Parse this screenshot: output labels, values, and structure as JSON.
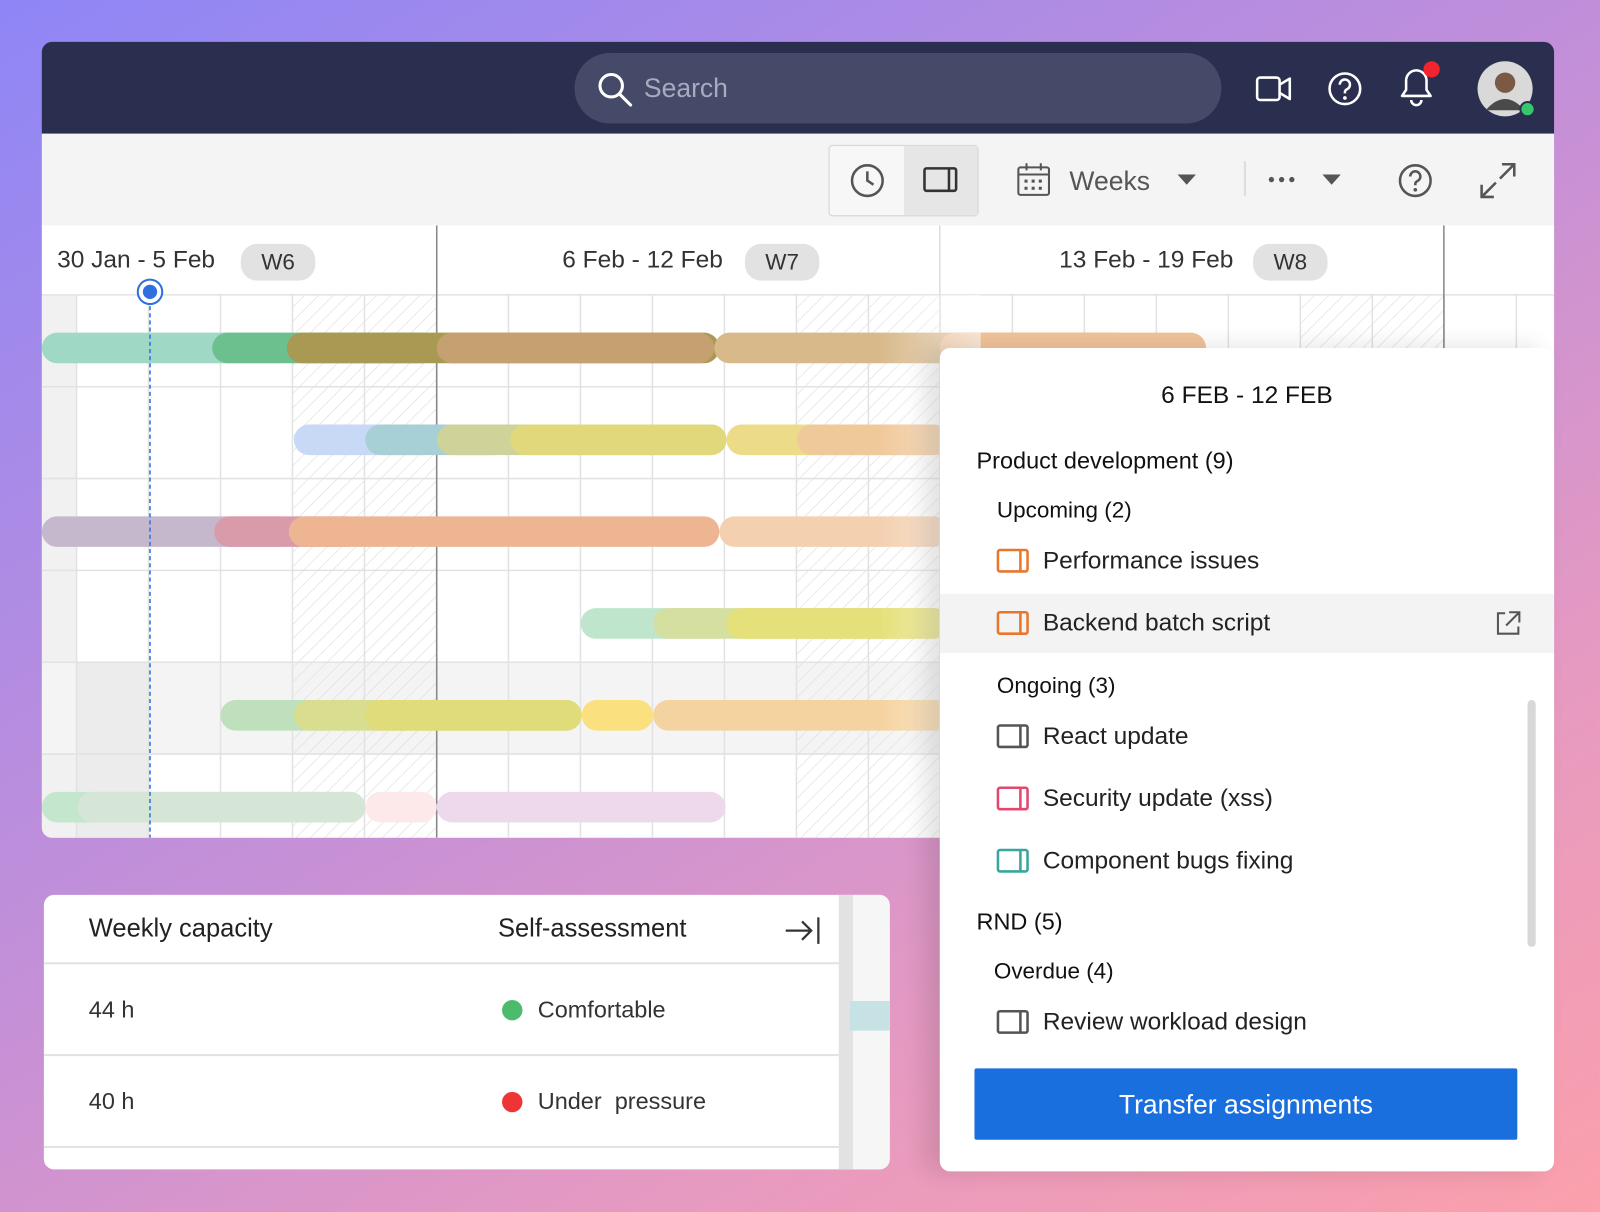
{
  "header": {
    "search_placeholder": "Search"
  },
  "toolbar": {
    "view": "Weeks"
  },
  "timeline": {
    "weeks": [
      {
        "range": "30 Jan - 5 Feb",
        "label": "W6"
      },
      {
        "range": "6 Feb - 12 Feb",
        "label": "W7"
      },
      {
        "range": "13 Feb - 19 Feb",
        "label": "W8"
      }
    ]
  },
  "panel": {
    "title": "6 FEB - 12 FEB",
    "groups": [
      {
        "name": "Product development (9)",
        "sections": [
          {
            "name": "Upcoming (2)",
            "items": [
              {
                "label": "Performance issues",
                "color": "#e8772e"
              },
              {
                "label": "Backend batch script",
                "color": "#e8772e",
                "highlighted": true
              }
            ]
          },
          {
            "name": "Ongoing (3)",
            "items": [
              {
                "label": "React update",
                "color": "#555555"
              },
              {
                "label": "Security update (xss)",
                "color": "#e0486e"
              },
              {
                "label": "Component bugs fixing",
                "color": "#3aa59d"
              }
            ]
          }
        ]
      },
      {
        "name": "RND (5)",
        "sections": [
          {
            "name": "Overdue (4)",
            "items": [
              {
                "label": "Review workload design",
                "color": "#555555"
              }
            ]
          }
        ]
      }
    ],
    "button": "Transfer assignments"
  },
  "capacity": {
    "columns": [
      "Weekly capacity",
      "Self-assessment"
    ],
    "rows": [
      {
        "capacity": "44 h",
        "status": "Comfortable",
        "color": "#4cbb6c"
      },
      {
        "capacity": "40 h",
        "status": "Under  pressure",
        "color": "#ee3535"
      }
    ]
  }
}
